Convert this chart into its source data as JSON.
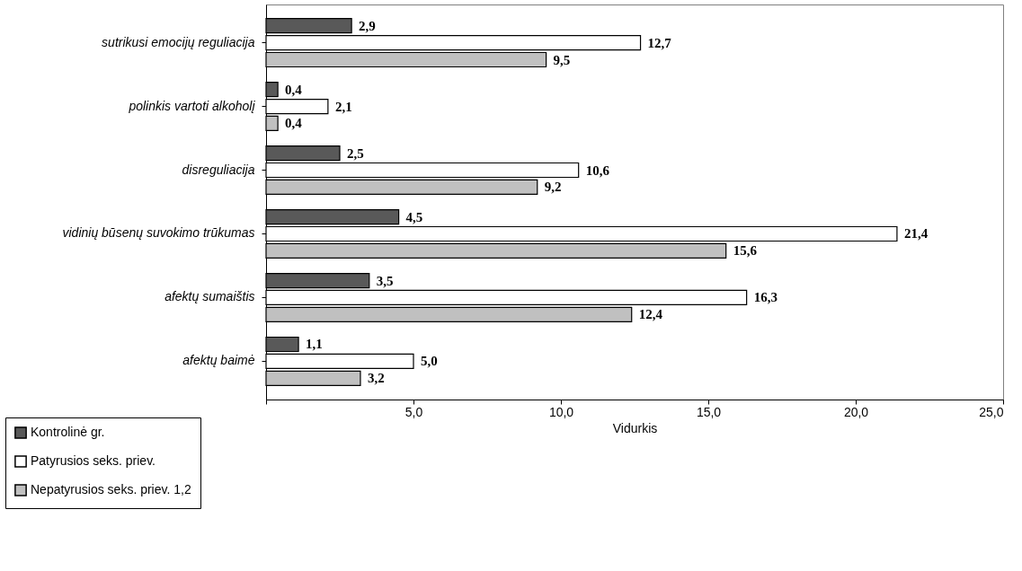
{
  "chart_data": {
    "type": "bar",
    "orientation": "horizontal",
    "xlabel": "Vidurkis",
    "categories": [
      "sutrikusi emocijų reguliacija",
      "polinkis vartoti alkoholį",
      "disreguliacija",
      "vidinių būsenų suvokimo trūkumas",
      "afektų sumaištis",
      "afektų baimė"
    ],
    "series": [
      {
        "name": "Kontrolinė gr.",
        "color": "#595959",
        "values": [
          2.9,
          0.4,
          2.5,
          4.5,
          3.5,
          1.1
        ],
        "value_labels": [
          "2,9",
          "0,4",
          "2,5",
          "4,5",
          "3,5",
          "1,1"
        ]
      },
      {
        "name": "Patyrusios seks. priev.",
        "color": "#ffffff",
        "values": [
          12.7,
          2.1,
          10.6,
          21.4,
          16.3,
          5.0
        ],
        "value_labels": [
          "12,7",
          "2,1",
          "10,6",
          "21,4",
          "16,3",
          "5,0"
        ]
      },
      {
        "name": "Nepatyrusios seks. priev. 1,2",
        "color": "#c0c0c0",
        "values": [
          9.5,
          0.4,
          9.2,
          15.6,
          12.4,
          3.2
        ],
        "value_labels": [
          "9,5",
          "0,4",
          "9,2",
          "15,6",
          "12,4",
          "3,2"
        ]
      }
    ],
    "xlim": [
      0,
      25
    ],
    "xticks": [
      {
        "value": 0,
        "label": null
      },
      {
        "value": 5,
        "label": "5,0"
      },
      {
        "value": 10,
        "label": "10,0"
      },
      {
        "value": 15,
        "label": "15,0"
      },
      {
        "value": 20,
        "label": "20,0"
      },
      {
        "value": 25,
        "label": "25,0"
      }
    ],
    "grid": false,
    "legend": "bottom left"
  }
}
